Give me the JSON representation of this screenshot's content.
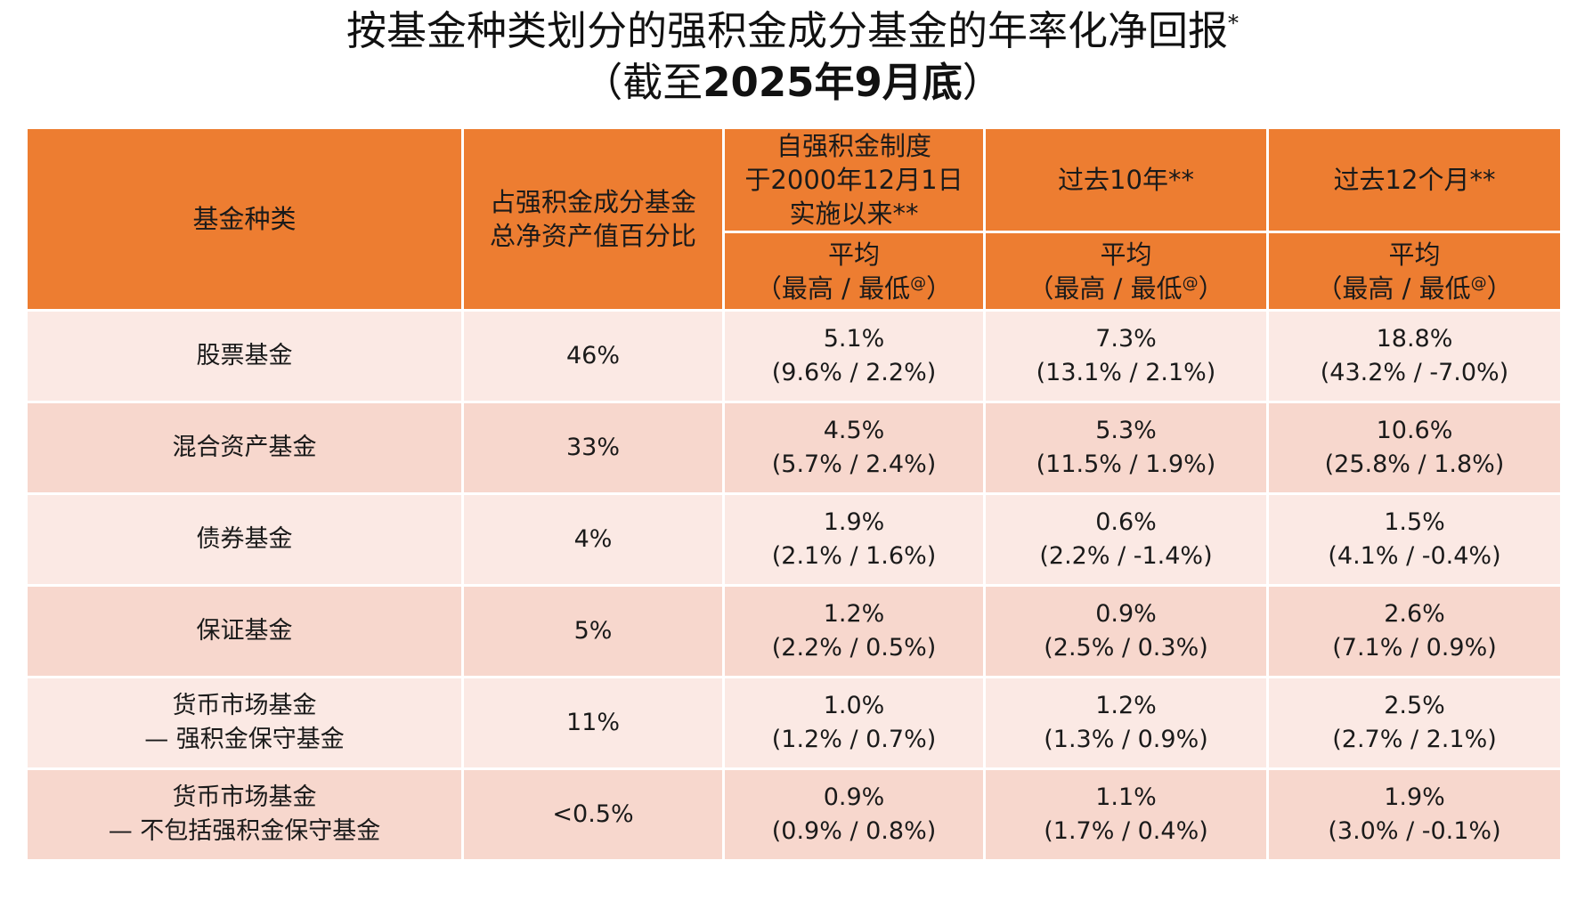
{
  "title": {
    "line1": "按基金种类划分的强积金成分基金的年率化净回报",
    "line1_mark": "*",
    "line2_open": "（截至",
    "line2_bold": "2025年9月底",
    "line2_close": "）"
  },
  "header": {
    "col1": "基金种类",
    "col2_line1": "占强积金成分基金",
    "col2_line2": "总净资产值百分比",
    "col3_line1": "自强积金制度",
    "col3_line2": "于2000年12月1日",
    "col3_line3": "实施以来**",
    "col4": "过去10年**",
    "col5": "过去12个月**",
    "sub_line1": "平均",
    "sub_line2": "（最高 / 最低",
    "sub_mark": "@",
    "sub_close": "）"
  },
  "rows": [
    {
      "name1": "股票基金",
      "name2": "",
      "pct": "46%",
      "since_avg": "5.1%",
      "since_range": "(9.6% / 2.2%)",
      "y10_avg": "7.3%",
      "y10_range": "(13.1% / 2.1%)",
      "m12_avg": "18.8%",
      "m12_range": "(43.2% / -7.0%)"
    },
    {
      "name1": "混合资产基金",
      "name2": "",
      "pct": "33%",
      "since_avg": "4.5%",
      "since_range": "(5.7% / 2.4%)",
      "y10_avg": "5.3%",
      "y10_range": "(11.5% / 1.9%)",
      "m12_avg": "10.6%",
      "m12_range": "(25.8% / 1.8%)"
    },
    {
      "name1": "债券基金",
      "name2": "",
      "pct": "4%",
      "since_avg": "1.9%",
      "since_range": "(2.1% / 1.6%)",
      "y10_avg": "0.6%",
      "y10_range": "(2.2% / -1.4%)",
      "m12_avg": "1.5%",
      "m12_range": "(4.1% / -0.4%)"
    },
    {
      "name1": "保证基金",
      "name2": "",
      "pct": "5%",
      "since_avg": "1.2%",
      "since_range": "(2.2% / 0.5%)",
      "y10_avg": "0.9%",
      "y10_range": "(2.5% / 0.3%)",
      "m12_avg": "2.6%",
      "m12_range": "(7.1% / 0.9%)"
    },
    {
      "name1": "货币市场基金",
      "name2": "— 强积金保守基金",
      "pct": "11%",
      "since_avg": "1.0%",
      "since_range": "(1.2% / 0.7%)",
      "y10_avg": "1.2%",
      "y10_range": "(1.3% / 0.9%)",
      "m12_avg": "2.5%",
      "m12_range": "(2.7% / 2.1%)"
    },
    {
      "name1": "货币市场基金",
      "name2": "— 不包括强积金保守基金",
      "pct": "<0.5%",
      "since_avg": "0.9%",
      "since_range": "(0.9% / 0.8%)",
      "y10_avg": "1.1%",
      "y10_range": "(1.7% / 0.4%)",
      "m12_avg": "1.9%",
      "m12_range": "(3.0% / -0.1%)"
    }
  ]
}
